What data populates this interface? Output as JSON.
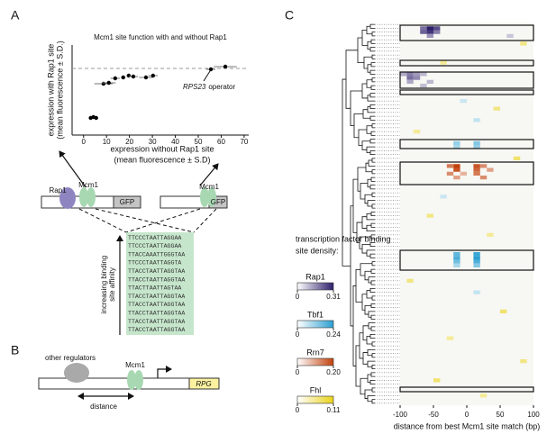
{
  "panel_labels": [
    "A",
    "B",
    "C"
  ],
  "chart_data": [
    {
      "type": "scatter",
      "title": "Mcm1 site function with and without Rap1",
      "xlabel": [
        "expression without Rap1 site",
        "(mean fluorescence  ± S.D)"
      ],
      "ylabel": [
        "expression with Rap1 site",
        "(mean fluorescence ± S.D.)"
      ],
      "x": [
        3.1,
        4.3,
        5.5,
        8.7,
        11,
        13.8,
        17.3,
        19.7,
        21.7,
        27.2,
        30.3,
        55.5,
        61.8
      ],
      "values": [
        41.8,
        44,
        41.8,
        125.4,
        127.6,
        138.6,
        140.8,
        145.2,
        143,
        140.8,
        145.2,
        160.6,
        167.2
      ],
      "xerr": [
        0.5,
        0.5,
        0.5,
        4,
        3,
        2,
        1,
        1,
        2,
        3,
        2,
        2,
        5
      ],
      "color": "#000000",
      "xlim": [
        -5,
        72
      ],
      "ylim": [
        0,
        220
      ],
      "xticks": [
        0,
        10,
        20,
        30,
        40,
        50,
        60,
        70
      ],
      "reference_line": 162.8,
      "annotation": {
        "italic": "RPS23",
        "text": "operator"
      }
    },
    {
      "type": "heatmap",
      "xlabel": "distance from best Mcm1 site match (bp)",
      "xlim": [
        -100,
        100
      ],
      "xticks": [
        -100,
        -50,
        0,
        50,
        100
      ],
      "ylim": [
        0,
        100
      ],
      "legend_title": [
        "transcription factor binding",
        "site density:"
      ],
      "series": [
        {
          "name": "Rap1",
          "color": "#2e1f6b",
          "clim": [
            0,
            0.31
          ],
          "cticks": [
            0,
            0.31
          ],
          "cells": [
            [
              1,
              -65,
              0.2
            ],
            [
              1,
              -55,
              0.31
            ],
            [
              1,
              -45,
              0.25
            ],
            [
              2,
              -65,
              0.22
            ],
            [
              2,
              -55,
              0.28
            ],
            [
              2,
              -45,
              0.18
            ],
            [
              3,
              -55,
              0.15
            ],
            [
              3,
              65,
              0.08
            ],
            [
              13,
              -95,
              0.12
            ],
            [
              13,
              -85,
              0.18
            ],
            [
              13,
              -75,
              0.14
            ],
            [
              13,
              -65,
              0.1
            ],
            [
              14,
              -85,
              0.2
            ],
            [
              14,
              -75,
              0.16
            ],
            [
              15,
              -85,
              0.12
            ],
            [
              15,
              -55,
              0.1
            ],
            [
              16,
              -65,
              0.09
            ]
          ]
        },
        {
          "name": "Tbf1",
          "color": "#2a9fd0",
          "clim": [
            0,
            0.24
          ],
          "cticks": [
            0,
            0.24
          ],
          "cells": [
            [
              31,
              -15,
              0.12
            ],
            [
              31,
              15,
              0.14
            ],
            [
              32,
              -15,
              0.1
            ],
            [
              32,
              15,
              0.12
            ],
            [
              20,
              -5,
              0.06
            ],
            [
              25,
              15,
              0.07
            ],
            [
              60,
              -15,
              0.18
            ],
            [
              60,
              15,
              0.22
            ],
            [
              61,
              -15,
              0.2
            ],
            [
              61,
              15,
              0.24
            ],
            [
              62,
              -15,
              0.16
            ],
            [
              62,
              15,
              0.2
            ],
            [
              63,
              15,
              0.14
            ],
            [
              63,
              -15,
              0.1
            ],
            [
              45,
              -35,
              0.06
            ],
            [
              70,
              15,
              0.07
            ]
          ]
        },
        {
          "name": "Rrn7",
          "color": "#c2410c",
          "clim": [
            0,
            0.2
          ],
          "cticks": [
            0,
            {
              "value": 0.2,
              "label": "0.20"
            }
          ],
          "cells": [
            [
              37,
              -15,
              0.2
            ],
            [
              37,
              -25,
              0.14
            ],
            [
              37,
              15,
              0.18
            ],
            [
              37,
              25,
              0.12
            ],
            [
              38,
              -15,
              0.18
            ],
            [
              38,
              15,
              0.16
            ],
            [
              38,
              35,
              0.1
            ],
            [
              39,
              -25,
              0.12
            ],
            [
              39,
              15,
              0.14
            ],
            [
              40,
              -15,
              0.1
            ],
            [
              40,
              25,
              0.12
            ],
            [
              39,
              -5,
              0.08
            ]
          ]
        },
        {
          "name": "Fhl",
          "color": "#e8d21a",
          "clim": [
            0,
            0.11
          ],
          "cticks": [
            0,
            0.11
          ],
          "cells": [
            [
              5,
              85,
              0.06
            ],
            [
              10,
              -35,
              0.05
            ],
            [
              22,
              45,
              0.06
            ],
            [
              28,
              -75,
              0.05
            ],
            [
              35,
              75,
              0.07
            ],
            [
              50,
              -55,
              0.06
            ],
            [
              55,
              35,
              0.05
            ],
            [
              67,
              -85,
              0.06
            ],
            [
              75,
              55,
              0.07
            ],
            [
              82,
              -25,
              0.05
            ],
            [
              88,
              85,
              0.06
            ],
            [
              93,
              -45,
              0.07
            ],
            [
              97,
              25,
              0.05
            ]
          ]
        }
      ]
    }
  ],
  "panel_a": {
    "construct_left": [
      "Rap1",
      "Mcm1",
      "GFP"
    ],
    "construct_right": [
      "Mcm1",
      "GFP"
    ],
    "affinity_label": [
      "increasing binding",
      "site affinity"
    ],
    "sequences": [
      "TTCCCTAATTAGGAA",
      "TTCCCTAATTAGGAA",
      "TTACCAAATTGGGTAA",
      "TTCCCTAATTAGGTA",
      "TTACCTAATTAGGTAA",
      "TTACCTAATTAGGTAA",
      "TTACTTAATTAGTAA",
      "TTACCTAATTAGGTAA",
      "TTACCTAATTAGGTAA",
      "TTACCTAATTAGGTAA",
      "TTACCTAATTAGGTAA",
      "TTACCTAATTAGGTAA"
    ]
  },
  "panel_b": {
    "regulators": "other regulators",
    "factor": "Mcm1",
    "gene": "RPG",
    "distance": "distance"
  }
}
